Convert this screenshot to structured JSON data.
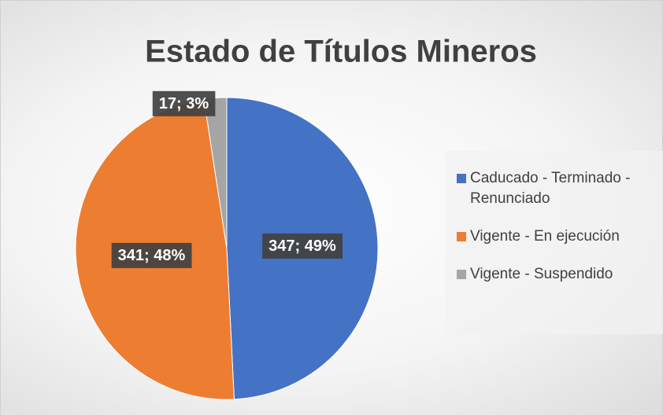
{
  "chart_data": {
    "type": "pie",
    "title": "Estado de Títulos Mineros",
    "categories": [
      "Caducado - Terminado - Renunciado",
      "Vigente - En  ejecución",
      "Vigente - Suspendido"
    ],
    "values": [
      347,
      341,
      17
    ],
    "value_labels": [
      "347; 49%",
      "341; 48%",
      "17; 3%"
    ],
    "colors": [
      "#4472c4",
      "#ed7d31",
      "#a5a5a5"
    ],
    "legend": "right"
  }
}
